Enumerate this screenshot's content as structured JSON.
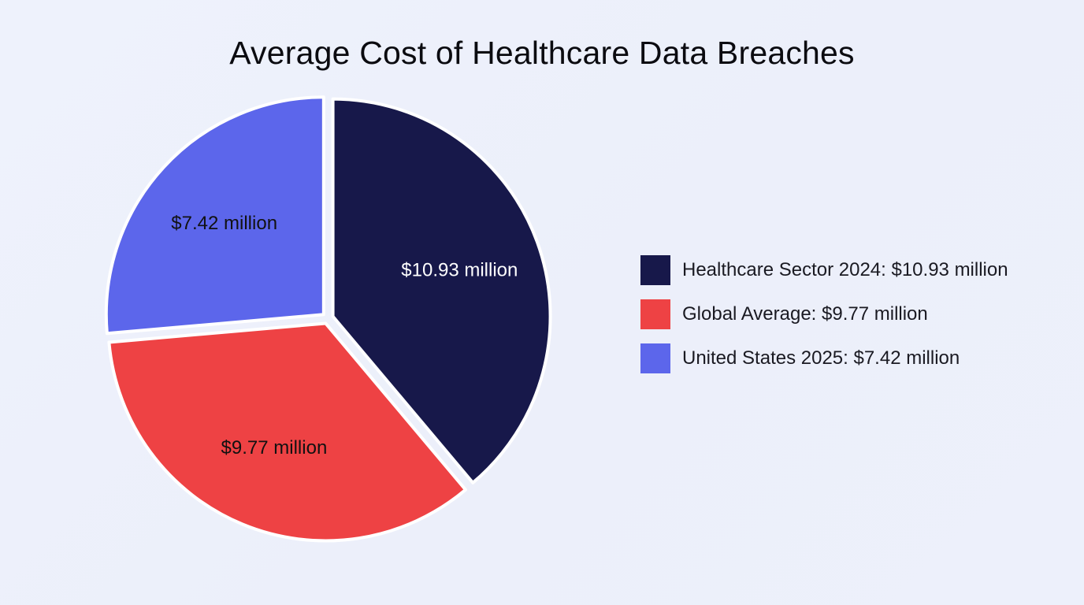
{
  "chart_data": {
    "type": "pie",
    "title": "Average Cost of Healthcare Data Breaches",
    "slices": [
      {
        "name": "Healthcare Sector 2024",
        "value": 10.93,
        "label": "$10.93 million",
        "legend": "Healthcare Sector 2024: $10.93 million",
        "color": "#17184a",
        "label_color": "#ffffff"
      },
      {
        "name": "Global Average",
        "value": 9.77,
        "label": "$9.77 million",
        "legend": "Global Average: $9.77 million",
        "color": "#ee4244",
        "label_color": "#111111"
      },
      {
        "name": "United States 2025",
        "value": 7.42,
        "label": "$7.42 million",
        "legend": "United States 2025: $7.42 million",
        "color": "#5c66eb",
        "label_color": "#111111"
      }
    ],
    "start_angle": "12 o'clock",
    "direction": "clockwise",
    "legend_position": "right"
  }
}
